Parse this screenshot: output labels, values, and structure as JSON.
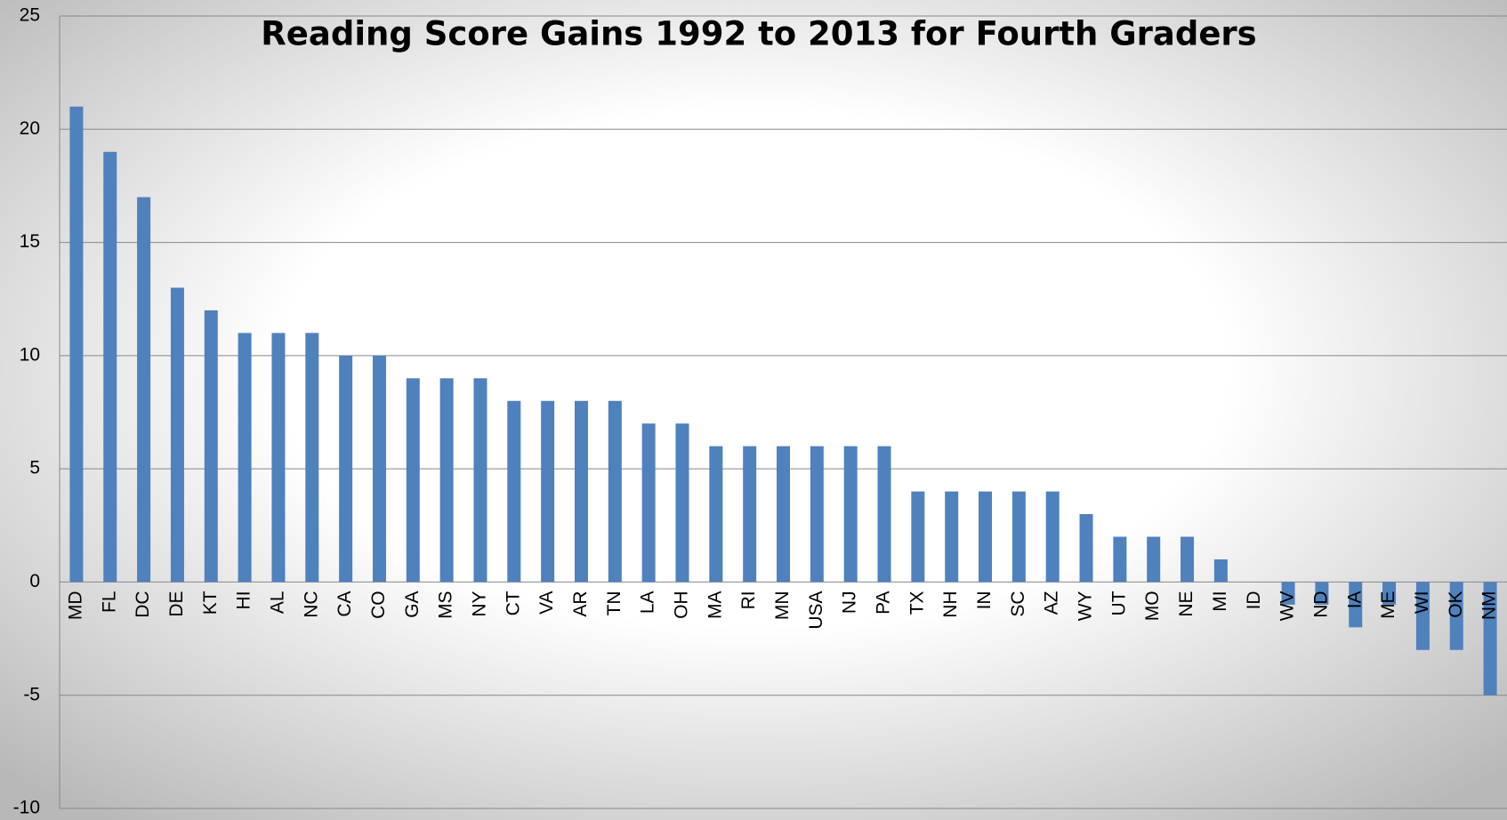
{
  "chart_data": {
    "type": "bar",
    "title": "Reading Score Gains 1992 to 2013 for Fourth Graders",
    "categories": [
      "MD",
      "FL",
      "DC",
      "DE",
      "KT",
      "HI",
      "AL",
      "NC",
      "CA",
      "CO",
      "GA",
      "MS",
      "NY",
      "CT",
      "VA",
      "AR",
      "TN",
      "LA",
      "OH",
      "MA",
      "RI",
      "MN",
      "USA",
      "NJ",
      "PA",
      "TX",
      "NH",
      "IN",
      "SC",
      "AZ",
      "WY",
      "UT",
      "MO",
      "NE",
      "MI",
      "ID",
      "WV",
      "ND",
      "IA",
      "ME",
      "WI",
      "OK",
      "NM"
    ],
    "values": [
      21,
      19,
      17,
      13,
      12,
      11,
      11,
      11,
      10,
      10,
      9,
      9,
      9,
      8,
      8,
      8,
      8,
      7,
      7,
      6,
      6,
      6,
      6,
      6,
      6,
      4,
      4,
      4,
      4,
      4,
      3,
      2,
      2,
      2,
      1,
      0,
      -1,
      -1,
      -2,
      -1,
      -3,
      -3,
      -5
    ],
    "color": "#4f81bd",
    "ylim": [
      -10,
      25
    ],
    "yticks": [
      -10,
      -5,
      0,
      5,
      10,
      15,
      20,
      25
    ],
    "grid": true
  }
}
